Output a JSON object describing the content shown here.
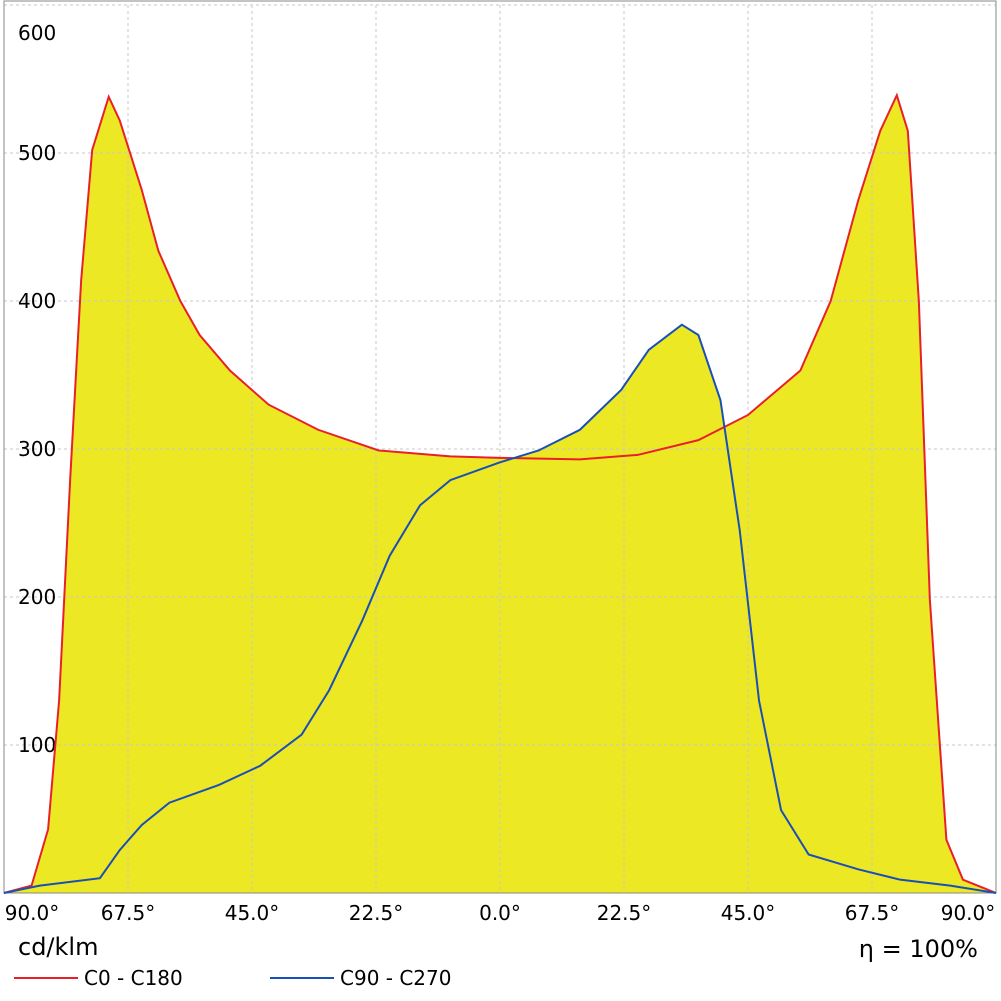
{
  "chart_data": {
    "type": "line",
    "x_unit_label": "cd/klm",
    "annotation": "η = 100%",
    "xlim": [
      -90,
      90
    ],
    "ylim": [
      0,
      600
    ],
    "xticks": [
      {
        "value": -90,
        "label": "90.0°"
      },
      {
        "value": -67.5,
        "label": "67.5°"
      },
      {
        "value": -45,
        "label": "45.0°"
      },
      {
        "value": -22.5,
        "label": "22.5°"
      },
      {
        "value": 0,
        "label": "0.0°"
      },
      {
        "value": 22.5,
        "label": "22.5°"
      },
      {
        "value": 45,
        "label": "45.0°"
      },
      {
        "value": 67.5,
        "label": "67.5°"
      },
      {
        "value": 90,
        "label": "90.0°"
      }
    ],
    "yticks": [
      100,
      200,
      300,
      400,
      500,
      600
    ],
    "grid": true,
    "fill_color": "#ede824",
    "series": [
      {
        "name": "C0 - C180",
        "color": "#e8202a",
        "x": [
          -90,
          -85,
          -82,
          -80,
          -78,
          -76,
          -74,
          -71,
          -69,
          -65,
          -62,
          -58,
          -54.5,
          -49,
          -42,
          -33,
          -22,
          -9,
          0,
          14.5,
          25,
          36,
          45,
          54.5,
          60,
          65,
          69,
          72,
          74,
          76,
          78,
          81,
          84,
          90
        ],
        "values": [
          0,
          5,
          43,
          130,
          279,
          414,
          502,
          538,
          522,
          475,
          434,
          400,
          377,
          353,
          330,
          313,
          299,
          295,
          294,
          293,
          296,
          306,
          323,
          353,
          400,
          468,
          515,
          539,
          515,
          400,
          198,
          36,
          9,
          0
        ]
      },
      {
        "name": "C90 - C270",
        "color": "#1a4fb5",
        "x": [
          -90,
          -83.5,
          -72.6,
          -69,
          -65,
          -60,
          -51,
          -43.5,
          -36,
          -31,
          -25,
          -20,
          -14.5,
          -9,
          0,
          7,
          14.5,
          22,
          27,
          33,
          36,
          40,
          43.5,
          47,
          51,
          56,
          65,
          72.6,
          81.7,
          90
        ],
        "values": [
          0,
          5,
          10,
          29,
          46,
          61,
          73,
          86,
          107,
          137,
          184,
          228,
          262,
          279,
          291,
          299,
          313,
          340,
          367,
          384,
          377,
          333,
          245,
          130,
          56,
          26,
          16,
          9,
          5,
          0
        ]
      }
    ]
  }
}
